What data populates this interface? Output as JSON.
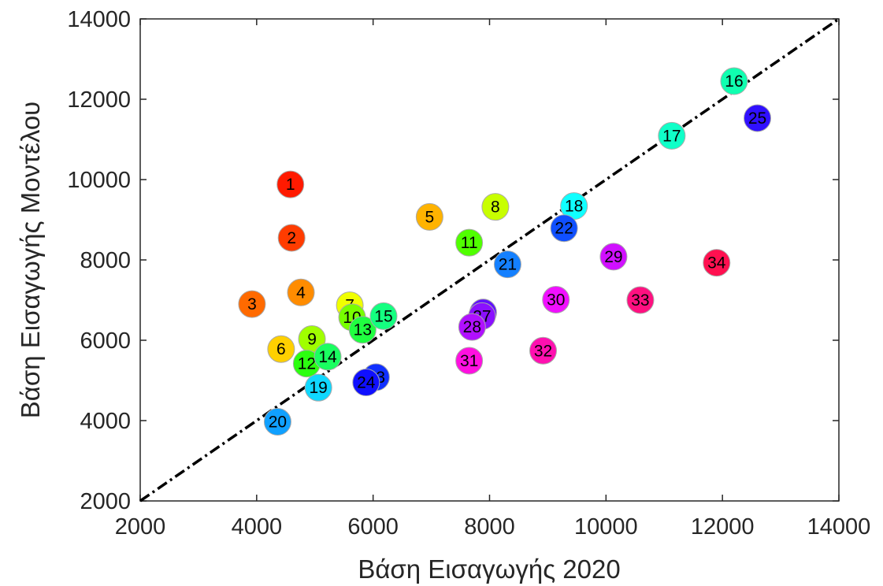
{
  "chart_data": {
    "type": "scatter",
    "xlabel": "Βάση  Εισαγωγής  2020",
    "ylabel": "Βάση  Εισαγωγής  Μοντέλου",
    "xlim": [
      2000,
      14000
    ],
    "ylim": [
      2000,
      14000
    ],
    "xticks": [
      "2000",
      "4000",
      "6000",
      "8000",
      "10000",
      "12000",
      "14000"
    ],
    "yticks": [
      "2000",
      "4000",
      "6000",
      "8000",
      "10000",
      "12000",
      "14000"
    ],
    "grid": false,
    "reference_line": {
      "style": "dash-dot",
      "from": [
        2000,
        2000
      ],
      "to": [
        14000,
        14000
      ]
    },
    "points": [
      {
        "label": "1",
        "x": 4580,
        "y": 9880,
        "color": "#ff1a00"
      },
      {
        "label": "2",
        "x": 4600,
        "y": 8550,
        "color": "#ff3c00"
      },
      {
        "label": "3",
        "x": 3920,
        "y": 6900,
        "color": "#ff6a00"
      },
      {
        "label": "4",
        "x": 4760,
        "y": 7190,
        "color": "#ff8c00"
      },
      {
        "label": "5",
        "x": 6970,
        "y": 9070,
        "color": "#ffb300"
      },
      {
        "label": "6",
        "x": 4420,
        "y": 5780,
        "color": "#ffd000"
      },
      {
        "label": "7",
        "x": 5600,
        "y": 6870,
        "color": "#f0ff00"
      },
      {
        "label": "8",
        "x": 8100,
        "y": 9320,
        "color": "#c8ff00"
      },
      {
        "label": "9",
        "x": 4950,
        "y": 6030,
        "color": "#a0ff00"
      },
      {
        "label": "10",
        "x": 5640,
        "y": 6570,
        "color": "#78ff00"
      },
      {
        "label": "11",
        "x": 7650,
        "y": 8430,
        "color": "#50ff00"
      },
      {
        "label": "12",
        "x": 4860,
        "y": 5420,
        "color": "#2cff10"
      },
      {
        "label": "13",
        "x": 5820,
        "y": 6260,
        "color": "#20ff40"
      },
      {
        "label": "14",
        "x": 5220,
        "y": 5590,
        "color": "#1aff60"
      },
      {
        "label": "15",
        "x": 6180,
        "y": 6600,
        "color": "#14ff80"
      },
      {
        "label": "16",
        "x": 12200,
        "y": 12450,
        "color": "#10ffb0"
      },
      {
        "label": "17",
        "x": 11130,
        "y": 11090,
        "color": "#10ffc8"
      },
      {
        "label": "18",
        "x": 9450,
        "y": 9340,
        "color": "#10ffff"
      },
      {
        "label": "19",
        "x": 5060,
        "y": 4820,
        "color": "#10d8ff"
      },
      {
        "label": "20",
        "x": 4360,
        "y": 3970,
        "color": "#10a0ff"
      },
      {
        "label": "21",
        "x": 8310,
        "y": 7890,
        "color": "#1480ff"
      },
      {
        "label": "22",
        "x": 9280,
        "y": 8790,
        "color": "#1050ff"
      },
      {
        "label": "23",
        "x": 6050,
        "y": 5080,
        "color": "#1030ff"
      },
      {
        "label": "24",
        "x": 5880,
        "y": 4950,
        "color": "#1010ff"
      },
      {
        "label": "25",
        "x": 12600,
        "y": 11530,
        "color": "#3010ff"
      },
      {
        "label": "26",
        "x": 7890,
        "y": 6690,
        "color": "#6010ff"
      },
      {
        "label": "27",
        "x": 7870,
        "y": 6600,
        "color": "#8a10ff"
      },
      {
        "label": "28",
        "x": 7700,
        "y": 6330,
        "color": "#b010ff"
      },
      {
        "label": "29",
        "x": 10130,
        "y": 8080,
        "color": "#d010ff"
      },
      {
        "label": "30",
        "x": 9140,
        "y": 7010,
        "color": "#f010ff"
      },
      {
        "label": "31",
        "x": 7650,
        "y": 5490,
        "color": "#ff10e0"
      },
      {
        "label": "32",
        "x": 8920,
        "y": 5740,
        "color": "#ff10b0"
      },
      {
        "label": "33",
        "x": 10590,
        "y": 7000,
        "color": "#ff1080"
      },
      {
        "label": "34",
        "x": 11900,
        "y": 7930,
        "color": "#ff1050"
      }
    ]
  }
}
